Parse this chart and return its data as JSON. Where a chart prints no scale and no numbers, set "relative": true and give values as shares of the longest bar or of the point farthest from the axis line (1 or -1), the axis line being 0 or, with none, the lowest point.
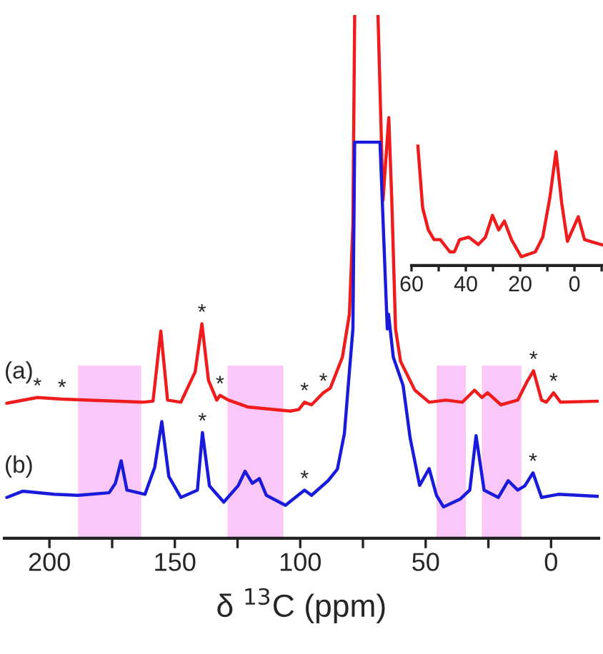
{
  "chart_data": [
    {
      "type": "line",
      "relative": true,
      "xlabel": "δ $^{13}$C (ppm)",
      "tick_labels": "x",
      "grid": false,
      "legend": false,
      "marker": "none",
      "line_style": "solid",
      "xlim": [
        218,
        -19
      ],
      "xticks": [
        200,
        {
          "value": 175,
          "label": null
        },
        150,
        {
          "value": 125,
          "label": null
        },
        100,
        {
          "value": 75,
          "label": null
        },
        50,
        {
          "value": 25,
          "label": null
        },
        0
      ],
      "bands": [
        {
          "axis": "x",
          "from": 188.6,
          "to": 163.4,
          "color": "#f9c8f9"
        },
        {
          "axis": "x",
          "from": 129,
          "to": 106.7,
          "color": "#f9c8f9"
        },
        {
          "axis": "x",
          "from": 45.7,
          "to": 33.9,
          "color": "#f9c8f9"
        },
        {
          "axis": "x",
          "from": 27.6,
          "to": 11.8,
          "color": "#f9c8f9"
        }
      ],
      "annotations": [
        {
          "text": "*",
          "x": 204.8,
          "y": 0.269
        },
        {
          "text": "*",
          "x": 195,
          "y": 0.266
        },
        {
          "text": "*",
          "x": 139.2,
          "y": 0.41
        },
        {
          "text": "*",
          "x": 132,
          "y": 0.273
        },
        {
          "text": "*",
          "x": 98.3,
          "y": 0.26
        },
        {
          "text": "*",
          "x": 90.8,
          "y": 0.278
        },
        {
          "text": "*",
          "x": 7,
          "y": 0.32
        },
        {
          "text": "*",
          "x": -1,
          "y": 0.278
        },
        {
          "text": "*",
          "x": 139,
          "y": 0.202
        },
        {
          "text": "*",
          "x": 98.3,
          "y": 0.092
        },
        {
          "text": "*",
          "x": 7.2,
          "y": 0.125
        }
      ],
      "series": [
        {
          "name": "(a)",
          "color": "#ee1c1c",
          "x": [
            217,
            204.8,
            195,
            162.9,
            158.7,
            155.6,
            152.9,
            147.6,
            141.9,
            139.2,
            136.6,
            133.3,
            132,
            128.6,
            121,
            104,
            100.6,
            98.3,
            95.5,
            90.8,
            88,
            83.2,
            80.4,
            79.0,
            78.3,
            73.5,
            69.0,
            67.0,
            64.7,
            63.5,
            62,
            60,
            54.3,
            48.6,
            41.9,
            35.4,
            30.5,
            27.6,
            25.3,
            20,
            13.3,
            9.5,
            7,
            3.8,
            1.9,
            -1,
            -3.8,
            -19
          ],
          "values": [
            0.258,
            0.269,
            0.266,
            0.26,
            0.262,
            0.396,
            0.264,
            0.26,
            0.318,
            0.41,
            0.302,
            0.264,
            0.273,
            0.264,
            0.251,
            0.243,
            0.246,
            0.26,
            0.255,
            0.278,
            0.287,
            0.346,
            0.428,
            0.6,
            1.0,
            null,
            1.0,
            0.646,
            0.804,
            0.646,
            0.4,
            0.338,
            0.283,
            0.26,
            0.264,
            0.26,
            0.283,
            0.269,
            0.278,
            0.255,
            0.264,
            0.3,
            0.32,
            0.264,
            0.26,
            0.278,
            0.26,
            0.262
          ]
        },
        {
          "name": "(b)",
          "color": "#1a1adb",
          "x": [
            217,
            210.6,
            198.1,
            188.6,
            176.2,
            173.7,
            171.4,
            169.1,
            161.9,
            158,
            155.2,
            152.4,
            147.6,
            141,
            139,
            136.2,
            130.5,
            124.8,
            122,
            119.1,
            116.3,
            113.5,
            105.9,
            98.3,
            95.5,
            88.9,
            85.2,
            82.4,
            80.4,
            79.0,
            78.3,
            68.2,
            65.3,
            64.8,
            62.9,
            59,
            56.2,
            52.4,
            48.6,
            45.7,
            42.9,
            36.2,
            32.4,
            29.9,
            26.7,
            21,
            17.1,
            13.3,
            10.5,
            7.2,
            3.8,
            -2.9,
            -19
          ],
          "values": [
            0.078,
            0.09,
            0.084,
            0.082,
            0.087,
            0.105,
            0.148,
            0.092,
            0.084,
            0.136,
            0.223,
            0.118,
            0.078,
            0.092,
            0.202,
            0.1,
            0.069,
            0.1,
            0.128,
            0.105,
            0.114,
            0.082,
            0.063,
            0.092,
            0.082,
            0.11,
            0.132,
            0.2,
            0.319,
            0.4,
            0.757,
            0.757,
            0.4,
            0.428,
            0.346,
            0.292,
            0.192,
            0.101,
            0.133,
            0.082,
            0.06,
            0.075,
            0.092,
            0.196,
            0.092,
            0.078,
            0.11,
            0.092,
            0.1,
            0.125,
            0.078,
            0.084,
            0.08
          ]
        }
      ]
    },
    {
      "type": "line",
      "relative": true,
      "tick_labels": "x",
      "grid": false,
      "legend": false,
      "marker": "none",
      "line_style": "solid",
      "xlim": [
        60,
        -10.5
      ],
      "xticks": [
        60,
        {
          "value": 50,
          "label": null
        },
        40,
        {
          "value": 30,
          "label": null
        },
        20,
        {
          "value": 10,
          "label": null
        },
        0,
        {
          "value": -10,
          "label": null
        }
      ],
      "series": [
        {
          "color": "#ee1c1c",
          "x": [
            57.7,
            55.9,
            53.8,
            51.7,
            49.4,
            45.9,
            44.2,
            42.3,
            38.9,
            35.4,
            32.8,
            30.2,
            27.9,
            25.8,
            23.2,
            19.6,
            14.4,
            11.7,
            9.1,
            6.8,
            4.7,
            2.6,
            -1.4,
            -3.7,
            -7.2,
            -10.4
          ],
          "values": [
            1.0,
            0.475,
            0.294,
            0.214,
            0.214,
            0.113,
            0.113,
            0.214,
            0.234,
            0.173,
            0.234,
            0.415,
            0.294,
            0.367,
            0.214,
            0.073,
            0.113,
            0.234,
            0.556,
            0.94,
            0.516,
            0.2,
            0.403,
            0.214,
            0.19,
            0.17
          ]
        }
      ]
    }
  ]
}
